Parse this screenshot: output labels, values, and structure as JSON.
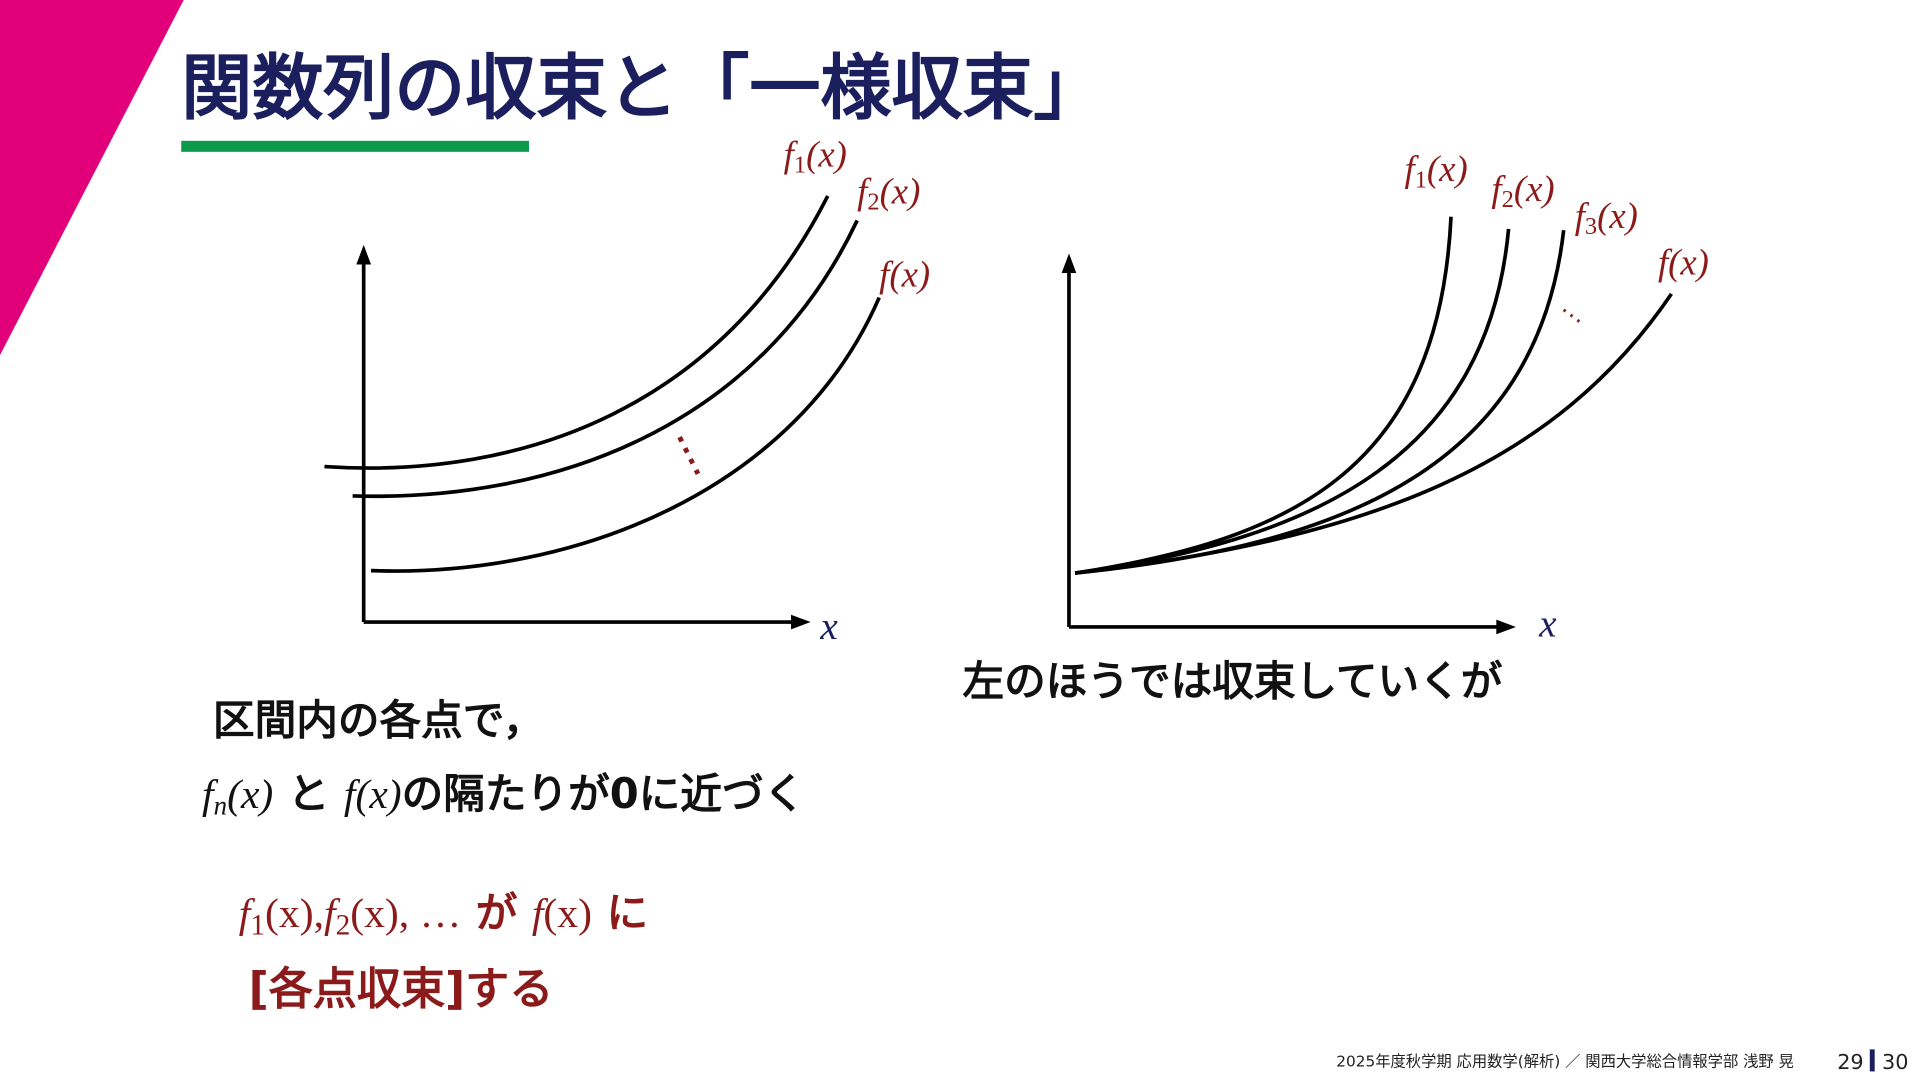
{
  "title": "関数列の収束と「一様収束」",
  "left_graph": {
    "labels": [
      {
        "f": "f",
        "sub": "1",
        "arg": "(x)"
      },
      {
        "f": "f",
        "sub": "2",
        "arg": "(x)"
      },
      {
        "f": "f",
        "arg": "(x)"
      }
    ],
    "axis_label": "x"
  },
  "right_graph": {
    "labels": [
      {
        "f": "f",
        "sub": "1",
        "arg": "(x)"
      },
      {
        "f": "f",
        "sub": "2",
        "arg": "(x)"
      },
      {
        "f": "f",
        "sub": "3",
        "arg": "(x)"
      },
      {
        "f": "f",
        "arg": "(x)"
      }
    ],
    "axis_label": "x",
    "caption": "左のほうでは収束していくが"
  },
  "body": {
    "line1": "区間内の各点で，",
    "line2": {
      "fn": {
        "f": "f",
        "sub": "n",
        "arg": "(x)"
      },
      "middle": " と ",
      "fx": {
        "f": "f",
        "arg": "(x)"
      },
      "rest": "の隔たりが0に近づく"
    }
  },
  "definition": {
    "f1": {
      "f": "f",
      "sub": "1",
      "arg": "(x)"
    },
    "separator": ",",
    "f2": {
      "f": "f",
      "sub": "2",
      "arg": "(x)"
    },
    "ellipsis": ", …",
    "ga": " が ",
    "fx": {
      "f": "f",
      "arg": "(x)"
    },
    "ni": " に",
    "line2": "[各点収束]する"
  },
  "footer": {
    "course": "2025年度秋学期 応用数学(解析) ／ 関西大学総合情報学部 浅野 晃",
    "page": "29",
    "total": "30"
  }
}
